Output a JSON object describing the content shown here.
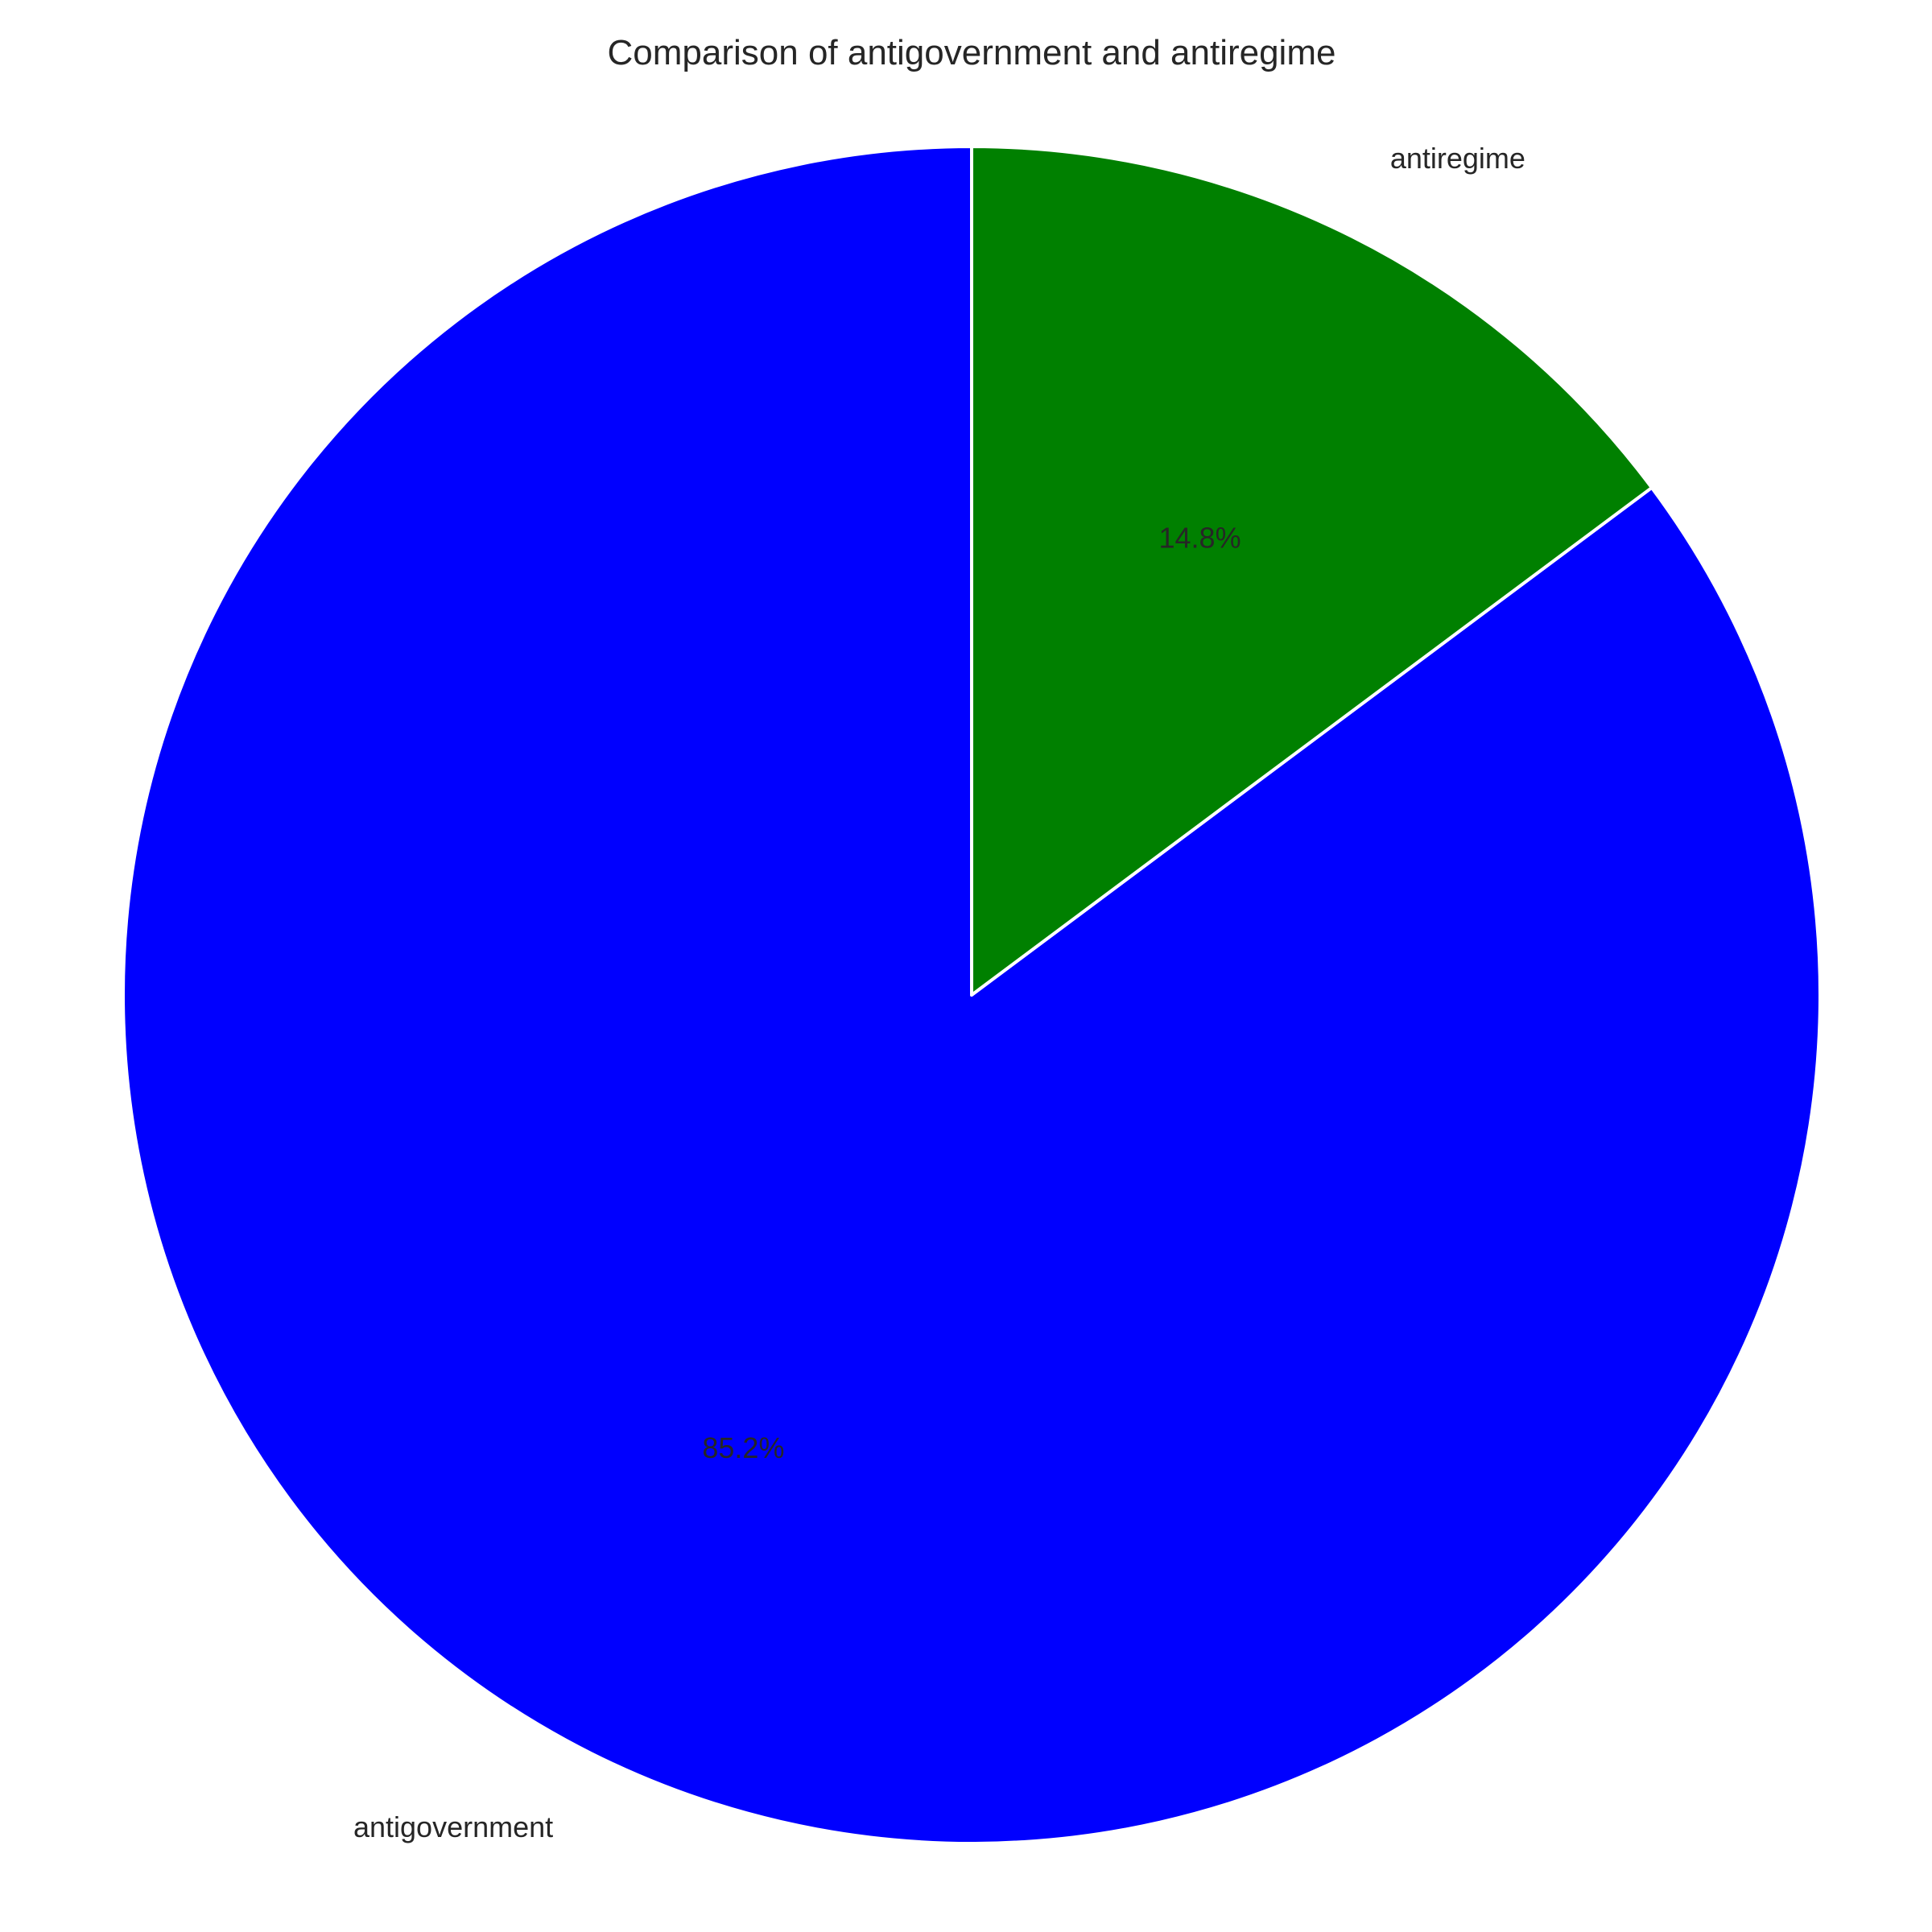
{
  "chart_data": {
    "type": "pie",
    "title": "Comparison of antigovernment and antiregime",
    "labels": [
      "antigovernment",
      "antiregime"
    ],
    "values": [
      85.2,
      14.8
    ],
    "percent_labels": [
      "85.2%",
      "14.8%"
    ],
    "colors": [
      "#0000ff",
      "#008000"
    ],
    "start_angle_deg": 90,
    "direction": "counterclockwise",
    "legend": "none"
  }
}
